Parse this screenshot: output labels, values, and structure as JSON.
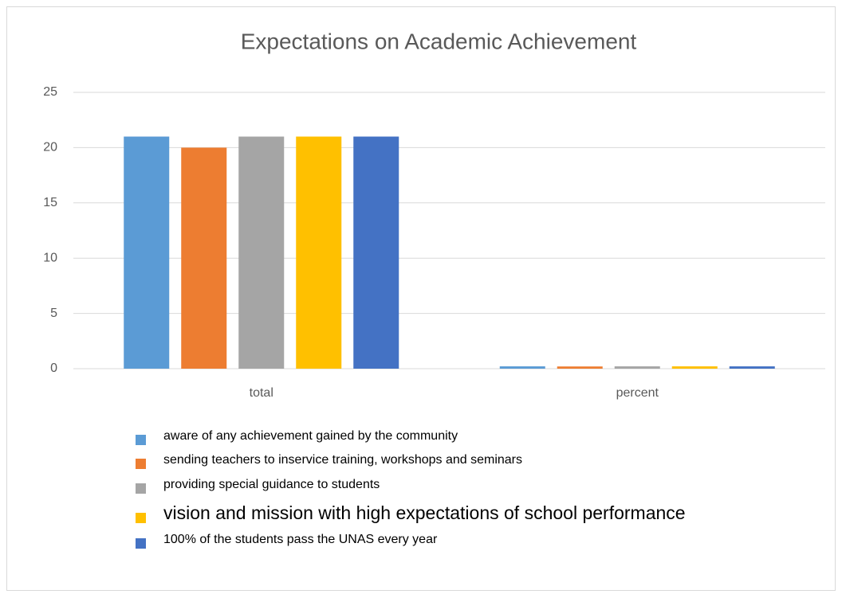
{
  "chart_data": {
    "type": "bar",
    "title": "Expectations on Academic Achievement",
    "categories": [
      "total",
      "percent"
    ],
    "series": [
      {
        "name": "aware of any achievement gained by the community",
        "color": "#5b9bd5",
        "values": [
          21,
          0.21
        ]
      },
      {
        "name": "sending teachers to inservice training, workshops and seminars",
        "color": "#ed7d31",
        "values": [
          20,
          0.2
        ]
      },
      {
        "name": "providing special guidance to students",
        "color": "#a5a5a5",
        "values": [
          21,
          0.21
        ]
      },
      {
        "name": "vision and mission with high expectations of school performance",
        "color": "#ffc000",
        "values": [
          21,
          0.21
        ]
      },
      {
        "name": "100% of the students pass the UNAS every year",
        "color": "#4472c4",
        "values": [
          21,
          0.21
        ]
      }
    ],
    "ylim": [
      0,
      25
    ],
    "yticks": [
      0,
      5,
      10,
      15,
      20,
      25
    ],
    "grid": true
  }
}
